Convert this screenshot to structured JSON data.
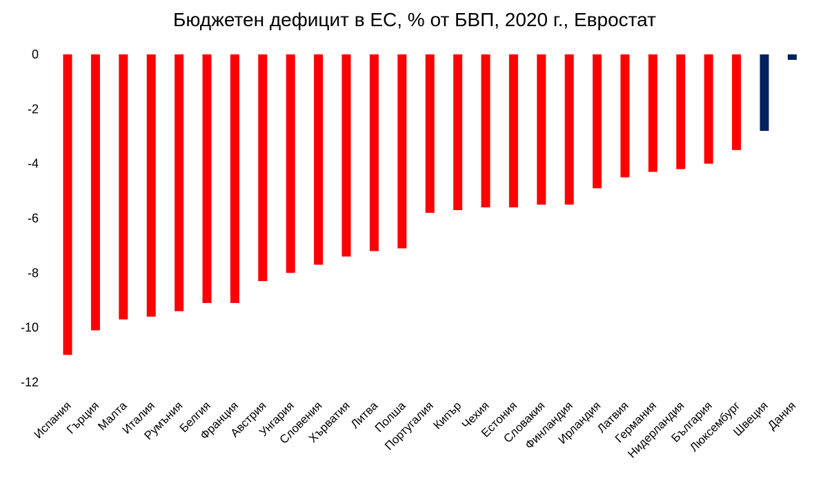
{
  "chart_data": {
    "type": "bar",
    "title": "Бюджетен дефицит в ЕС, % от БВП, 2020 г., Евростат",
    "xlabel": "",
    "ylabel": "",
    "ylim": [
      -12,
      0
    ],
    "yticks": [
      0,
      -2,
      -4,
      -6,
      -8,
      -10,
      -12
    ],
    "grid": false,
    "legend": "none",
    "categories": [
      "Испания",
      "Гърция",
      "Малта",
      "Италия",
      "Румъния",
      "Белгия",
      "Франция",
      "Австрия",
      "Унгария",
      "Словения",
      "Хърватия",
      "Литва",
      "Полша",
      "Португалия",
      "Кипър",
      "Чехия",
      "Естония",
      "Словакия",
      "Финландия",
      "Ирландия",
      "Латвия",
      "Германия",
      "Нидерландия",
      "България",
      "Люксембург",
      "Швеция",
      "Дания"
    ],
    "values": [
      -11.0,
      -10.1,
      -9.7,
      -9.6,
      -9.4,
      -9.1,
      -9.1,
      -8.3,
      -8.0,
      -7.7,
      -7.4,
      -7.2,
      -7.1,
      -5.8,
      -5.7,
      -5.6,
      -5.6,
      -5.5,
      -5.5,
      -4.9,
      -4.5,
      -4.3,
      -4.2,
      -4.0,
      -3.5,
      -2.8,
      -0.2
    ],
    "colors": [
      "#ff0000",
      "#ff0000",
      "#ff0000",
      "#ff0000",
      "#ff0000",
      "#ff0000",
      "#ff0000",
      "#ff0000",
      "#ff0000",
      "#ff0000",
      "#ff0000",
      "#ff0000",
      "#ff0000",
      "#ff0000",
      "#ff0000",
      "#ff0000",
      "#ff0000",
      "#ff0000",
      "#ff0000",
      "#ff0000",
      "#ff0000",
      "#ff0000",
      "#ff0000",
      "#ff0000",
      "#ff0000",
      "#002060",
      "#002060"
    ]
  }
}
